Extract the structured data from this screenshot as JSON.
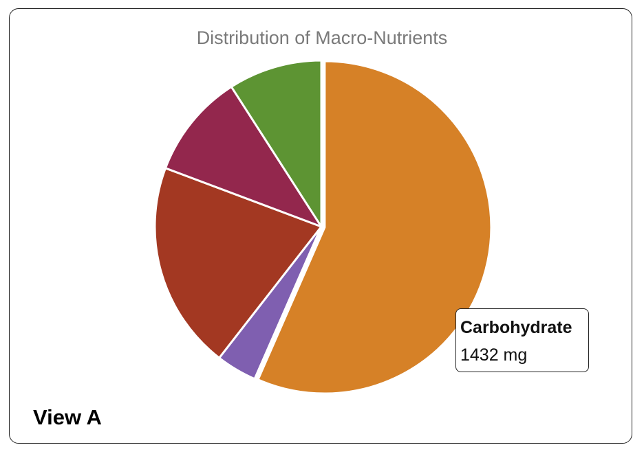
{
  "chart_data": {
    "type": "pie",
    "title": "Distribution of Macro-Nutrients",
    "slices": [
      {
        "name": "Carbohydrate",
        "value": 1432,
        "unit": "mg",
        "color": "#d68127"
      },
      {
        "name": "",
        "value": 100,
        "unit": "mg",
        "color": "#7f5fb0"
      },
      {
        "name": "",
        "value": 512,
        "unit": "mg",
        "color": "#a33822"
      },
      {
        "name": "",
        "value": 258,
        "unit": "mg",
        "color": "#93274d"
      },
      {
        "name": "",
        "value": 230,
        "unit": "mg",
        "color": "#5d9433"
      }
    ],
    "highlighted": "Carbohydrate",
    "start_angle_deg": 0,
    "direction": "clockwise"
  },
  "tooltip": {
    "name": "Carbohydrate",
    "value": "1432 mg"
  },
  "view_label": "View A"
}
